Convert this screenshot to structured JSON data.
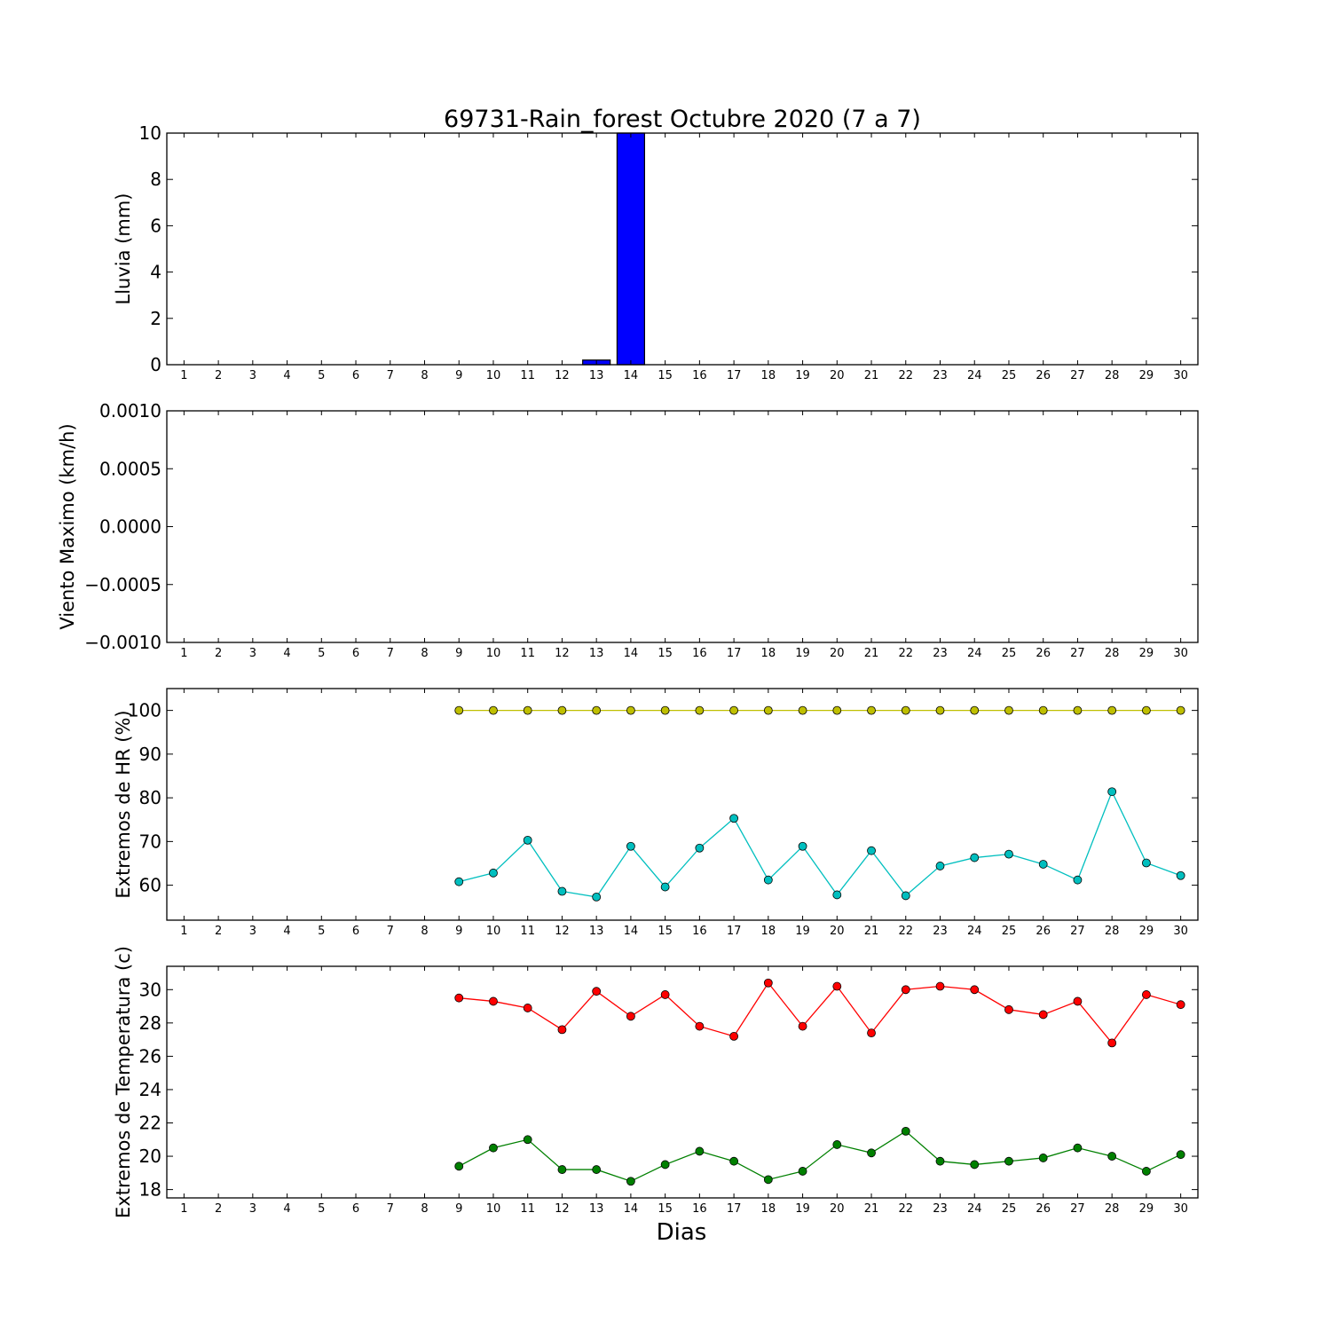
{
  "figure": {
    "title": "69731-Rain_forest Octubre 2020  (7 a 7)",
    "xlabel": "Dias"
  },
  "chart_data": [
    {
      "type": "bar",
      "ylabel": "Lluvia (mm)",
      "ylim": [
        0,
        10
      ],
      "yticks": [
        "0",
        "2",
        "4",
        "6",
        "8",
        "10"
      ],
      "ytick_values": [
        0,
        2,
        4,
        6,
        8,
        10
      ],
      "categories": [
        1,
        2,
        3,
        4,
        5,
        6,
        7,
        8,
        9,
        10,
        11,
        12,
        13,
        14,
        15,
        16,
        17,
        18,
        19,
        20,
        21,
        22,
        23,
        24,
        25,
        26,
        27,
        28,
        29,
        30
      ],
      "series": [
        {
          "color": "#0000ff",
          "x": [
            13,
            14
          ],
          "values": [
            0.2,
            10
          ]
        }
      ]
    },
    {
      "type": "line",
      "ylabel": "Viento Maximo (km/h)",
      "ylim": [
        -0.001,
        0.001
      ],
      "yticks": [
        "0.0010",
        "0.0005",
        "0.0000",
        "−0.0005",
        "−0.0010"
      ],
      "ytick_values": [
        0.001,
        0.0005,
        0,
        -0.0005,
        -0.001
      ],
      "categories": [
        1,
        2,
        3,
        4,
        5,
        6,
        7,
        8,
        9,
        10,
        11,
        12,
        13,
        14,
        15,
        16,
        17,
        18,
        19,
        20,
        21,
        22,
        23,
        24,
        25,
        26,
        27,
        28,
        29,
        30
      ],
      "series": []
    },
    {
      "type": "line",
      "ylabel": "Extremos de HR (%)",
      "ylim": [
        52,
        105
      ],
      "yticks": [
        "60",
        "70",
        "80",
        "90",
        "100"
      ],
      "ytick_values": [
        60,
        70,
        80,
        90,
        100
      ],
      "categories": [
        1,
        2,
        3,
        4,
        5,
        6,
        7,
        8,
        9,
        10,
        11,
        12,
        13,
        14,
        15,
        16,
        17,
        18,
        19,
        20,
        21,
        22,
        23,
        24,
        25,
        26,
        27,
        28,
        29,
        30
      ],
      "series": [
        {
          "color": "#bfbf00",
          "x": [
            9,
            10,
            11,
            12,
            13,
            14,
            15,
            16,
            17,
            18,
            19,
            20,
            21,
            22,
            23,
            24,
            25,
            26,
            27,
            28,
            29,
            30
          ],
          "values": [
            100,
            100,
            100,
            100,
            100,
            100,
            100,
            100,
            100,
            100,
            100,
            100,
            100,
            100,
            100,
            100,
            100,
            100,
            100,
            100,
            100,
            100
          ]
        },
        {
          "color": "#00bfbf",
          "x": [
            9,
            10,
            11,
            12,
            13,
            14,
            15,
            16,
            17,
            18,
            19,
            20,
            21,
            22,
            23,
            24,
            25,
            26,
            27,
            28,
            29,
            30
          ],
          "values": [
            60.8,
            62.8,
            70.3,
            58.6,
            57.3,
            68.9,
            59.6,
            68.5,
            75.3,
            61.2,
            68.9,
            57.8,
            67.9,
            57.6,
            64.4,
            66.3,
            67.1,
            64.8,
            61.2,
            81.4,
            65.1,
            62.2
          ]
        }
      ]
    },
    {
      "type": "line",
      "ylabel": "Extremos de Temperatura (c)",
      "ylim": [
        17.5,
        31.4
      ],
      "yticks": [
        "18",
        "20",
        "22",
        "24",
        "26",
        "28",
        "30"
      ],
      "ytick_values": [
        18,
        20,
        22,
        24,
        26,
        28,
        30
      ],
      "categories": [
        1,
        2,
        3,
        4,
        5,
        6,
        7,
        8,
        9,
        10,
        11,
        12,
        13,
        14,
        15,
        16,
        17,
        18,
        19,
        20,
        21,
        22,
        23,
        24,
        25,
        26,
        27,
        28,
        29,
        30
      ],
      "series": [
        {
          "color": "#ff0000",
          "x": [
            9,
            10,
            11,
            12,
            13,
            14,
            15,
            16,
            17,
            18,
            19,
            20,
            21,
            22,
            23,
            24,
            25,
            26,
            27,
            28,
            29,
            30
          ],
          "values": [
            29.5,
            29.3,
            28.9,
            27.6,
            29.9,
            28.4,
            29.7,
            27.8,
            27.2,
            30.4,
            27.8,
            30.2,
            27.4,
            30.0,
            30.2,
            30.0,
            28.8,
            28.5,
            29.3,
            26.8,
            29.7,
            29.1
          ]
        },
        {
          "color": "#008000",
          "x": [
            9,
            10,
            11,
            12,
            13,
            14,
            15,
            16,
            17,
            18,
            19,
            20,
            21,
            22,
            23,
            24,
            25,
            26,
            27,
            28,
            29,
            30
          ],
          "values": [
            19.4,
            20.5,
            21.0,
            19.2,
            19.2,
            18.5,
            19.5,
            20.3,
            19.7,
            18.6,
            19.1,
            20.7,
            20.2,
            21.5,
            19.7,
            19.5,
            19.7,
            19.9,
            20.5,
            20.0,
            19.1,
            20.1
          ]
        }
      ]
    }
  ]
}
